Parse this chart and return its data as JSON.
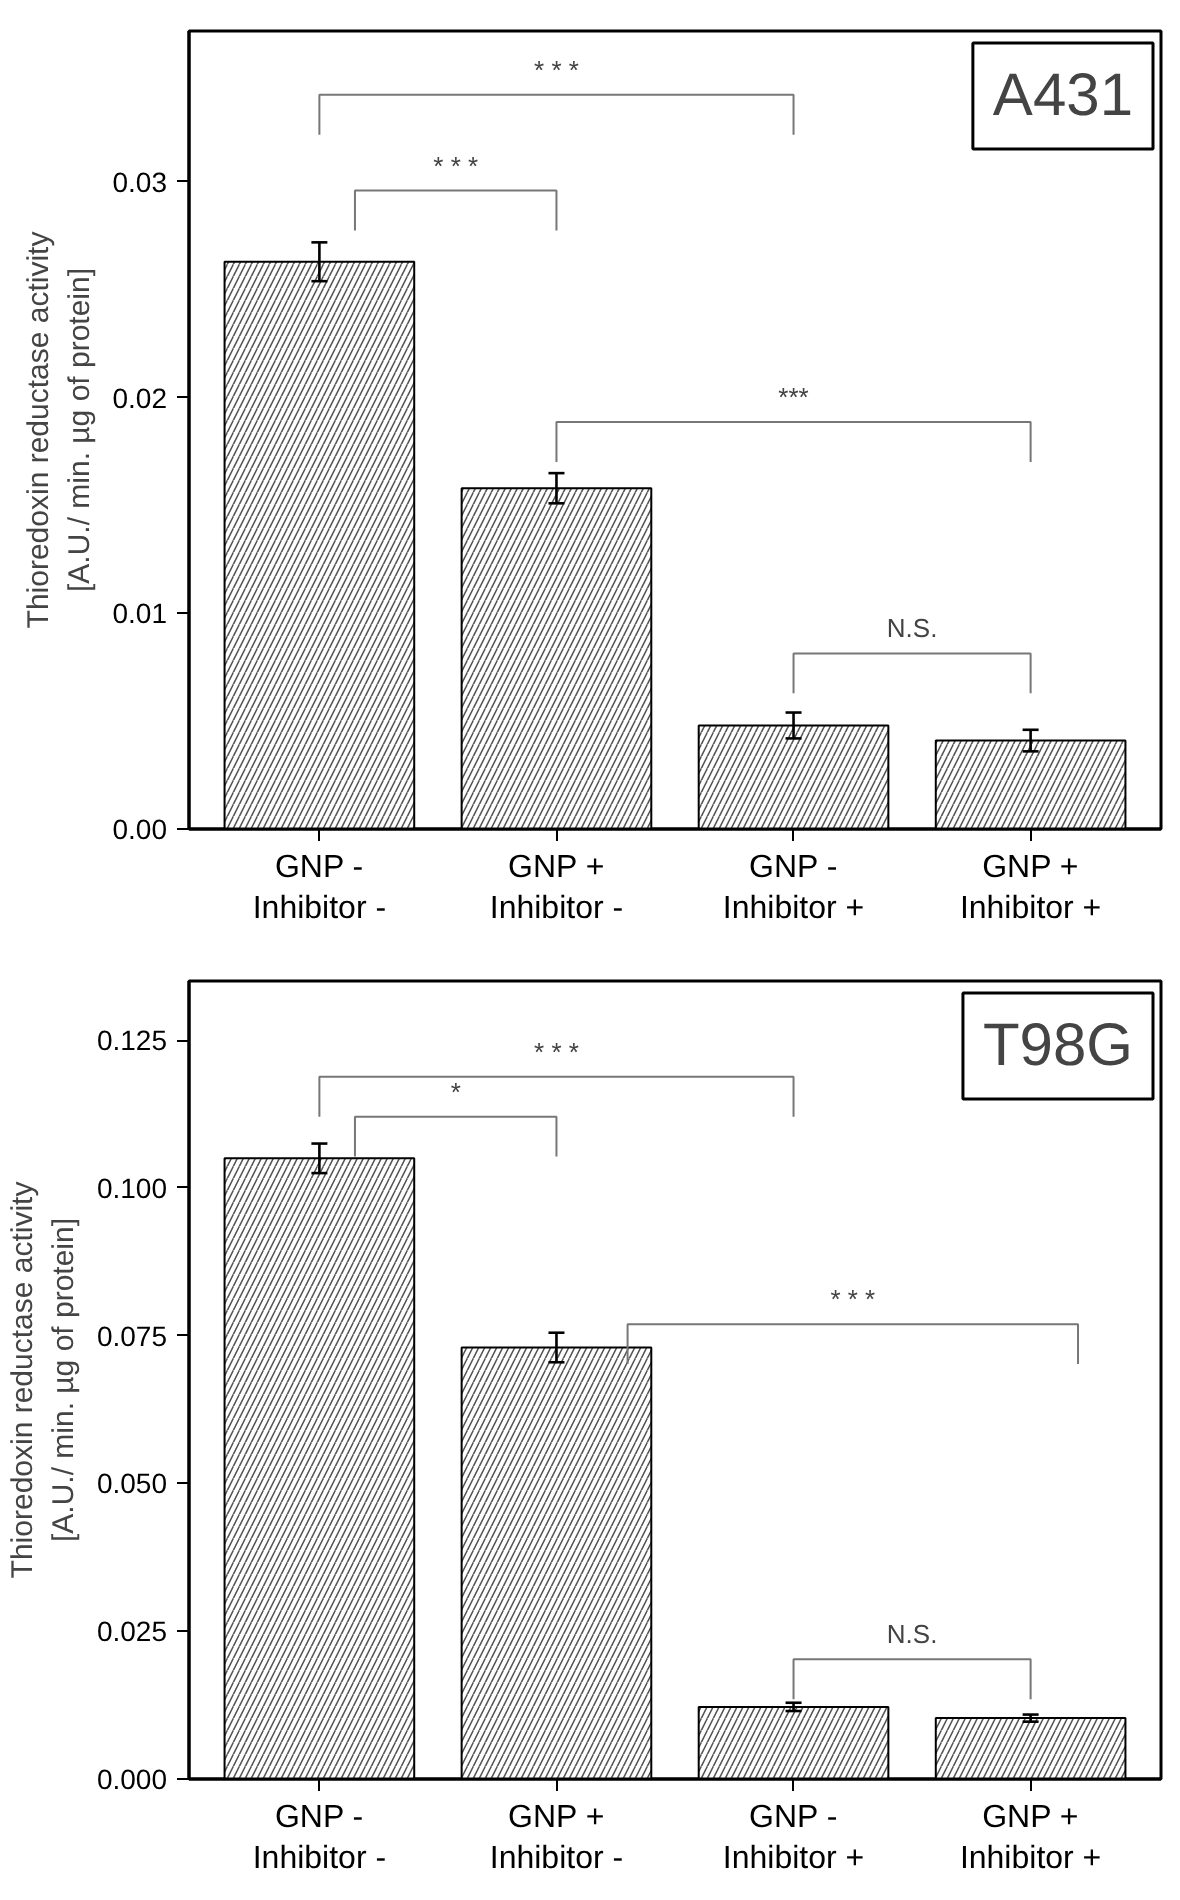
{
  "chart_data": [
    {
      "type": "bar",
      "title": "A431",
      "ylabel": "Thioredoxin reductase activity\n[A.U./ min. µg of protein]",
      "categories": [
        "GNP -\nInhibitor -",
        "GNP +\nInhibitor -",
        "GNP -\nInhibitor +",
        "GNP +\nInhibitor +"
      ],
      "values": [
        0.0263,
        0.0158,
        0.0048,
        0.0041
      ],
      "errors": [
        0.0009,
        0.0007,
        0.0006,
        0.0005
      ],
      "color": "#ffffff",
      "ylim": [
        0,
        0.037
      ],
      "yticks": [
        {
          "value": 0,
          "label": "0.00"
        },
        {
          "value": 0.01,
          "label": "0.01"
        },
        {
          "value": 0.02,
          "label": "0.02"
        },
        {
          "value": 0.03,
          "label": "0.03"
        }
      ],
      "grid": false,
      "annotations": [
        "* * *",
        "* * *",
        "***",
        "N.S."
      ]
    },
    {
      "type": "bar",
      "title": "T98G",
      "ylabel": "Thioredoxin reductase activity\n[A.U./ min. µg of protein]",
      "categories": [
        "GNP -\nInhibitor -",
        "GNP +\nInhibitor -",
        "GNP -\nInhibitor +",
        "GNP +\nInhibitor +"
      ],
      "values": [
        0.105,
        0.073,
        0.0122,
        0.0103
      ],
      "errors": [
        0.0025,
        0.0025,
        0.0007,
        0.0006
      ],
      "color": "#ffffff",
      "ylim": [
        0,
        0.135
      ],
      "yticks": [
        {
          "value": 0,
          "label": "0.000"
        },
        {
          "value": 0.025,
          "label": "0.025"
        },
        {
          "value": 0.05,
          "label": "0.050"
        },
        {
          "value": 0.075,
          "label": "0.075"
        },
        {
          "value": 0.1,
          "label": "0.100"
        },
        {
          "value": 0.125,
          "label": "0.125"
        }
      ],
      "grid": false,
      "annotations": [
        "* * *",
        "*",
        "* * *",
        "N.S."
      ]
    }
  ]
}
